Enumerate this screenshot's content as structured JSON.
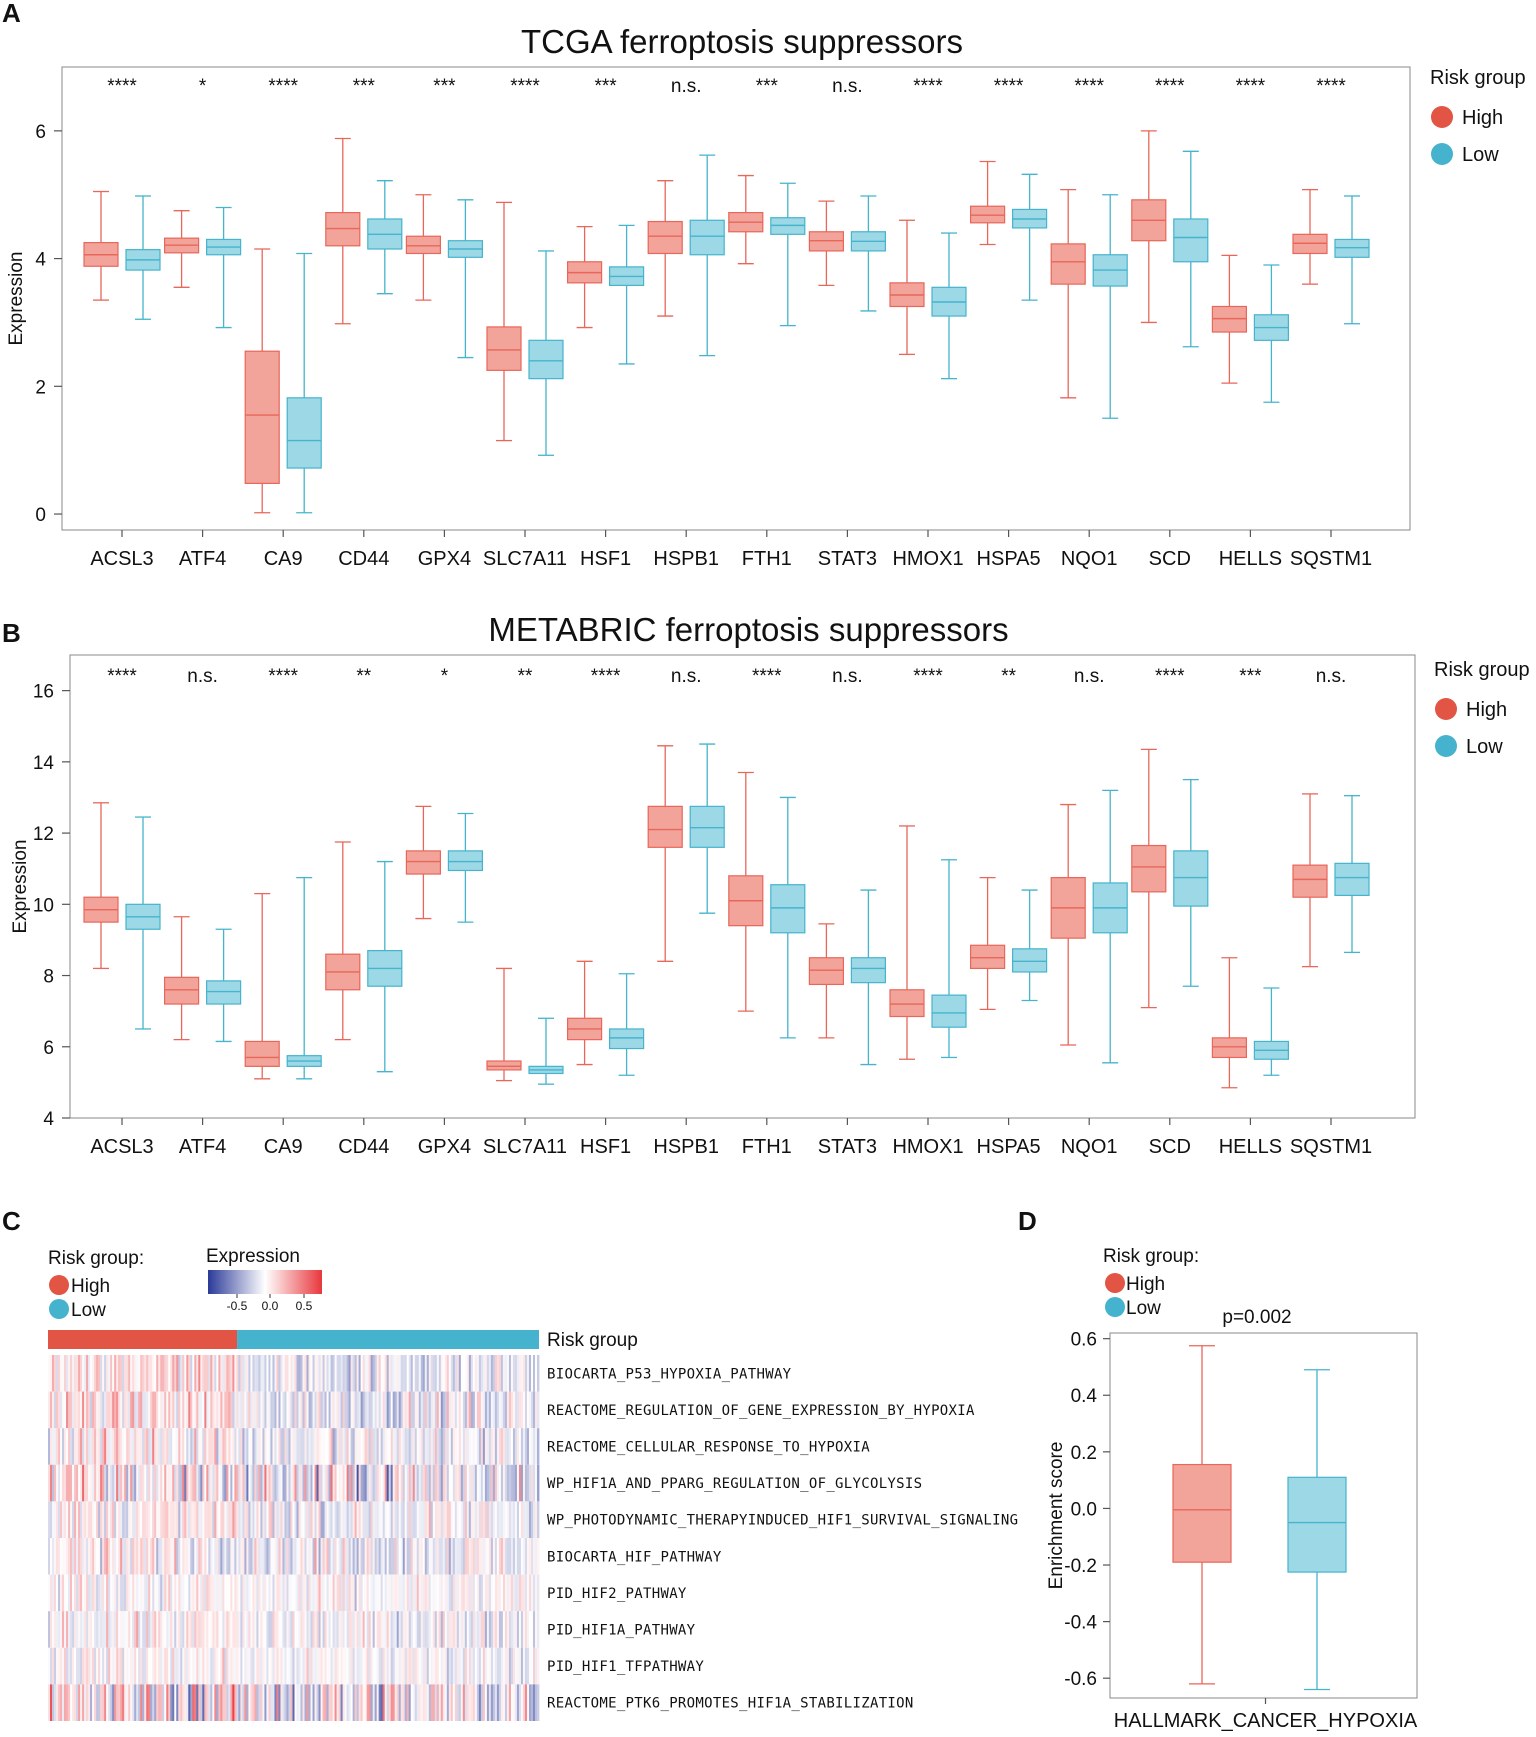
{
  "colors": {
    "high_fill": "#f2a49b",
    "high_line": "#e8665a",
    "low_fill": "#9dd8e6",
    "low_line": "#45b4cc",
    "legend_high": "#e25443",
    "legend_low": "#45b3cd",
    "heat_neg": "#2b3a98",
    "heat_pos": "#e8373d"
  },
  "panel_a": {
    "letter": "A",
    "title": "TCGA ferroptosis suppressors",
    "ylabel": "Expression",
    "legend_title": "Risk group",
    "legend_high": "High",
    "legend_low": "Low"
  },
  "panel_b": {
    "letter": "B",
    "title": "METABRIC ferroptosis suppressors",
    "ylabel": "Expression",
    "legend_title": "Risk group",
    "legend_high": "High",
    "legend_low": "Low"
  },
  "panel_c": {
    "letter": "C",
    "legend_title": "Risk group:",
    "legend_high": "High",
    "legend_low": "Low",
    "expr_title": "Expression",
    "expr_ticks": [
      "-0.5",
      "0.0",
      "0.5"
    ],
    "bar_label": "Risk group"
  },
  "panel_d": {
    "letter": "D",
    "legend_title": "Risk group:",
    "legend_high": "High",
    "legend_low": "Low",
    "pvalue": "p=0.002",
    "ylabel": "Enrichment score",
    "xlabel": "HALLMARK_CANCER_HYPOXIA"
  },
  "chart_data": [
    {
      "type": "box",
      "title": "TCGA ferroptosis suppressors",
      "ylabel": "Expression",
      "ylim": [
        -0.25,
        7.0
      ],
      "yticks": [
        "0",
        "2",
        "4",
        "6"
      ],
      "categories": [
        "ACSL3",
        "ATF4",
        "CA9",
        "CD44",
        "GPX4",
        "SLC7A11",
        "HSF1",
        "HSPB1",
        "FTH1",
        "STAT3",
        "HMOX1",
        "HSPA5",
        "NQO1",
        "SCD",
        "HELLS",
        "SQSTM1"
      ],
      "significance": [
        "****",
        "*",
        "****",
        "***",
        "***",
        "****",
        "***",
        "n.s.",
        "***",
        "n.s.",
        "****",
        "****",
        "****",
        "****",
        "****",
        "****"
      ],
      "series": [
        {
          "name": "High",
          "boxes": [
            [
              3.35,
              3.88,
              4.06,
              4.25,
              5.05
            ],
            [
              3.55,
              4.09,
              4.21,
              4.32,
              4.75
            ],
            [
              0.02,
              0.48,
              1.55,
              2.55,
              4.15
            ],
            [
              2.98,
              4.2,
              4.47,
              4.72,
              5.88
            ],
            [
              3.35,
              4.08,
              4.2,
              4.35,
              5.0
            ],
            [
              1.15,
              2.25,
              2.57,
              2.93,
              4.88
            ],
            [
              2.92,
              3.62,
              3.78,
              3.95,
              4.5
            ],
            [
              3.1,
              4.08,
              4.35,
              4.58,
              5.22
            ],
            [
              3.92,
              4.42,
              4.57,
              4.72,
              5.3
            ],
            [
              3.58,
              4.12,
              4.28,
              4.42,
              4.9
            ],
            [
              2.5,
              3.25,
              3.43,
              3.62,
              4.6
            ],
            [
              4.22,
              4.56,
              4.68,
              4.82,
              5.52
            ],
            [
              1.82,
              3.6,
              3.95,
              4.23,
              5.08
            ],
            [
              3.0,
              4.28,
              4.6,
              4.92,
              6.0
            ],
            [
              2.05,
              2.85,
              3.06,
              3.25,
              4.05
            ],
            [
              3.6,
              4.08,
              4.24,
              4.38,
              5.08
            ]
          ]
        },
        {
          "name": "Low",
          "boxes": [
            [
              3.05,
              3.82,
              3.98,
              4.14,
              4.98
            ],
            [
              2.92,
              4.06,
              4.18,
              4.3,
              4.8
            ],
            [
              0.02,
              0.72,
              1.15,
              1.82,
              4.08
            ],
            [
              3.45,
              4.15,
              4.38,
              4.62,
              5.22
            ],
            [
              2.45,
              4.02,
              4.15,
              4.28,
              4.92
            ],
            [
              0.92,
              2.12,
              2.4,
              2.72,
              4.12
            ],
            [
              2.35,
              3.58,
              3.72,
              3.87,
              4.52
            ],
            [
              2.48,
              4.06,
              4.35,
              4.6,
              5.62
            ],
            [
              2.95,
              4.38,
              4.52,
              4.64,
              5.18
            ],
            [
              3.18,
              4.12,
              4.27,
              4.42,
              4.98
            ],
            [
              2.12,
              3.1,
              3.32,
              3.55,
              4.4
            ],
            [
              3.35,
              4.48,
              4.62,
              4.77,
              5.32
            ],
            [
              1.5,
              3.57,
              3.82,
              4.06,
              5.0
            ],
            [
              2.62,
              3.95,
              4.33,
              4.62,
              5.68
            ],
            [
              1.75,
              2.72,
              2.92,
              3.12,
              3.9
            ],
            [
              2.98,
              4.02,
              4.17,
              4.3,
              4.98
            ]
          ]
        }
      ]
    },
    {
      "type": "box",
      "title": "METABRIC ferroptosis suppressors",
      "ylabel": "Expression",
      "ylim": [
        4.0,
        17.0
      ],
      "yticks": [
        "4",
        "6",
        "8",
        "10",
        "12",
        "14",
        "16"
      ],
      "categories": [
        "ACSL3",
        "ATF4",
        "CA9",
        "CD44",
        "GPX4",
        "SLC7A11",
        "HSF1",
        "HSPB1",
        "FTH1",
        "STAT3",
        "HMOX1",
        "HSPA5",
        "NQO1",
        "SCD",
        "HELLS",
        "SQSTM1"
      ],
      "significance": [
        "****",
        "n.s.",
        "****",
        "**",
        "*",
        "**",
        "****",
        "n.s.",
        "****",
        "n.s.",
        "****",
        "**",
        "n.s.",
        "****",
        "***",
        "n.s."
      ],
      "series": [
        {
          "name": "High",
          "boxes": [
            [
              8.2,
              9.5,
              9.85,
              10.2,
              12.85
            ],
            [
              6.2,
              7.2,
              7.6,
              7.95,
              9.65
            ],
            [
              5.1,
              5.45,
              5.7,
              6.15,
              10.3
            ],
            [
              6.2,
              7.6,
              8.1,
              8.6,
              11.75
            ],
            [
              9.6,
              10.85,
              11.2,
              11.5,
              12.75
            ],
            [
              5.05,
              5.35,
              5.45,
              5.6,
              8.2
            ],
            [
              5.5,
              6.2,
              6.5,
              6.8,
              8.4
            ],
            [
              8.4,
              11.6,
              12.1,
              12.75,
              14.45
            ],
            [
              7.0,
              9.4,
              10.1,
              10.8,
              13.7
            ],
            [
              6.25,
              7.75,
              8.15,
              8.5,
              9.45
            ],
            [
              5.65,
              6.85,
              7.2,
              7.6,
              12.2
            ],
            [
              7.05,
              8.2,
              8.5,
              8.85,
              10.75
            ],
            [
              6.05,
              9.05,
              9.9,
              10.75,
              12.8
            ],
            [
              7.1,
              10.35,
              11.05,
              11.65,
              14.35
            ],
            [
              4.85,
              5.7,
              6.0,
              6.25,
              8.5
            ],
            [
              8.25,
              10.2,
              10.7,
              11.1,
              13.1
            ]
          ]
        },
        {
          "name": "Low",
          "boxes": [
            [
              6.5,
              9.3,
              9.65,
              10.0,
              12.45
            ],
            [
              6.15,
              7.2,
              7.55,
              7.85,
              9.3
            ],
            [
              5.1,
              5.45,
              5.6,
              5.75,
              10.75
            ],
            [
              5.3,
              7.7,
              8.2,
              8.7,
              11.2
            ],
            [
              9.5,
              10.95,
              11.2,
              11.5,
              12.55
            ],
            [
              4.95,
              5.25,
              5.35,
              5.45,
              6.8
            ],
            [
              5.2,
              5.95,
              6.25,
              6.5,
              8.05
            ],
            [
              9.75,
              11.6,
              12.15,
              12.75,
              14.5
            ],
            [
              6.25,
              9.2,
              9.9,
              10.55,
              13.0
            ],
            [
              5.5,
              7.8,
              8.2,
              8.5,
              10.4
            ],
            [
              5.7,
              6.55,
              6.95,
              7.45,
              11.25
            ],
            [
              7.3,
              8.1,
              8.4,
              8.75,
              10.4
            ],
            [
              5.55,
              9.2,
              9.9,
              10.6,
              13.2
            ],
            [
              7.7,
              9.95,
              10.75,
              11.5,
              13.5
            ],
            [
              5.2,
              5.65,
              5.9,
              6.15,
              7.65
            ],
            [
              8.65,
              10.25,
              10.75,
              11.15,
              13.05
            ]
          ]
        }
      ]
    },
    {
      "type": "heatmap",
      "title": "",
      "rows": [
        "BIOCARTA_P53_HYPOXIA_PATHWAY",
        "REACTOME_REGULATION_OF_GENE_EXPRESSION_BY_HYPOXIA",
        "REACTOME_CELLULAR_RESPONSE_TO_HYPOXIA",
        "WP_HIF1A_AND_PPARG_REGULATION_OF_GLYCOLYSIS",
        "WP_PHOTODYNAMIC_THERAPYINDUCED_HIF1_SURVIVAL_SIGNALING",
        "BIOCARTA_HIF_PATHWAY",
        "PID_HIF2_PATHWAY",
        "PID_HIF1A_PATHWAY",
        "PID_HIF1_TFPATHWAY",
        "REACTOME_PTK6_PROMOTES_HIF1A_STABILIZATION"
      ],
      "column_groups": [
        {
          "name": "High",
          "fraction": 0.385
        },
        {
          "name": "Low",
          "fraction": 0.615
        }
      ],
      "value_range": [
        -0.8,
        0.8
      ],
      "row_mean": [
        0.12,
        0.1,
        0.08,
        0.05,
        0.04,
        0.04,
        0.02,
        0.03,
        0.02,
        0.03
      ],
      "row_contrast": [
        0.85,
        0.9,
        0.85,
        1.35,
        0.8,
        0.85,
        0.6,
        0.7,
        0.6,
        1.6
      ]
    },
    {
      "type": "box",
      "title": "",
      "xlabel": "HALLMARK_CANCER_HYPOXIA",
      "ylabel": "Enrichment score",
      "ylim": [
        -0.67,
        0.62
      ],
      "yticks": [
        "0.6",
        "0.4",
        "0.2",
        "0.0",
        "-0.2",
        "-0.4",
        "-0.6"
      ],
      "yticks_values": [
        0.6,
        0.4,
        0.2,
        0.0,
        -0.2,
        -0.4,
        -0.6
      ],
      "pvalue": "p=0.002",
      "series": [
        {
          "name": "High",
          "box": [
            -0.62,
            -0.19,
            -0.005,
            0.155,
            0.575
          ]
        },
        {
          "name": "Low",
          "box": [
            -0.64,
            -0.225,
            -0.05,
            0.11,
            0.49
          ]
        }
      ]
    }
  ]
}
